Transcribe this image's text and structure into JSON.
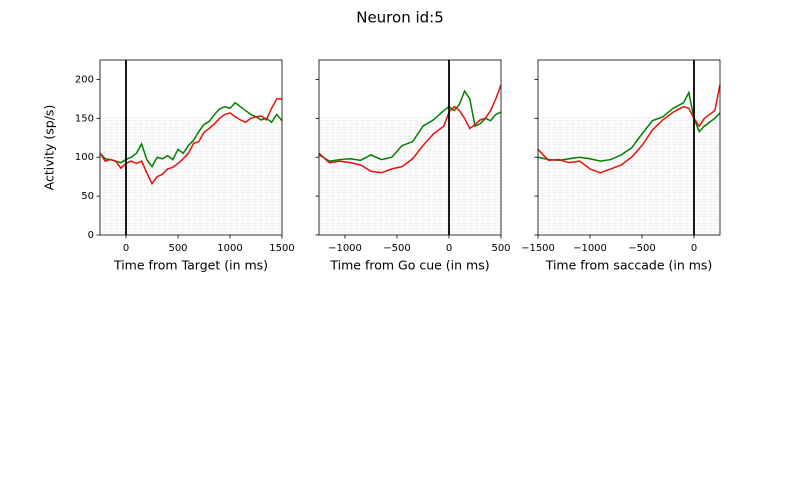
{
  "title": "Neuron id:5",
  "chart_data": [
    {
      "type": "line",
      "xlabel": "Time from Target (in ms)",
      "ylabel": "Activity (sp/s)",
      "xlim": [
        -250,
        1500
      ],
      "xticks": [
        0,
        500,
        1000,
        1500
      ],
      "ylim": [
        0,
        225
      ],
      "yticks": [
        0,
        50,
        100,
        150,
        200
      ],
      "ytick_labels": true,
      "vline": 0,
      "x": [
        -250,
        -200,
        -150,
        -100,
        -50,
        0,
        50,
        100,
        150,
        200,
        250,
        300,
        350,
        400,
        450,
        500,
        550,
        600,
        650,
        700,
        750,
        800,
        850,
        900,
        950,
        1000,
        1050,
        1100,
        1150,
        1200,
        1250,
        1300,
        1350,
        1400,
        1450,
        1500
      ],
      "series": [
        {
          "color": "#008000",
          "values": [
            105,
            98,
            97,
            95,
            93,
            97,
            100,
            105,
            117,
            97,
            88,
            100,
            98,
            102,
            97,
            110,
            105,
            115,
            122,
            133,
            142,
            146,
            155,
            162,
            165,
            163,
            170,
            165,
            160,
            155,
            152,
            148,
            150,
            145,
            155,
            147
          ]
        },
        {
          "color": "#e8100b",
          "values": [
            105,
            95,
            97,
            95,
            86,
            92,
            95,
            92,
            95,
            80,
            66,
            75,
            78,
            85,
            87,
            92,
            98,
            105,
            118,
            120,
            132,
            137,
            143,
            150,
            155,
            157,
            152,
            148,
            145,
            150,
            152,
            153,
            148,
            163,
            175,
            175
          ]
        }
      ]
    },
    {
      "type": "line",
      "xlabel": "Time from Go cue (in ms)",
      "xlim": [
        -1250,
        500
      ],
      "xticks": [
        {
          "value": -1000,
          "label": "−1000"
        },
        {
          "value": -500,
          "label": "−500"
        },
        0,
        500
      ],
      "ylim": [
        0,
        225
      ],
      "yticks": [
        0,
        50,
        100,
        150,
        200
      ],
      "ytick_labels": false,
      "vline": 0,
      "x": [
        -1250,
        -1150,
        -1050,
        -950,
        -850,
        -750,
        -650,
        -550,
        -450,
        -350,
        -250,
        -150,
        -50,
        0,
        50,
        100,
        150,
        200,
        250,
        300,
        350,
        400,
        450,
        500
      ],
      "series": [
        {
          "color": "#008000",
          "values": [
            103,
            95,
            97,
            98,
            96,
            103,
            97,
            100,
            115,
            120,
            140,
            148,
            160,
            165,
            160,
            168,
            185,
            175,
            140,
            143,
            150,
            147,
            155,
            158
          ]
        },
        {
          "color": "#e8100b",
          "values": [
            105,
            93,
            95,
            93,
            90,
            82,
            80,
            85,
            88,
            98,
            115,
            130,
            140,
            158,
            165,
            160,
            150,
            137,
            142,
            148,
            150,
            160,
            175,
            193
          ]
        }
      ]
    },
    {
      "type": "line",
      "xlabel": "Time from saccade (in ms)",
      "xlim": [
        -1500,
        250
      ],
      "xticks": [
        {
          "value": -1500,
          "label": "−1500"
        },
        {
          "value": -1000,
          "label": "−1000"
        },
        {
          "value": -500,
          "label": "−500"
        },
        0
      ],
      "ylim": [
        0,
        225
      ],
      "yticks": [
        0,
        50,
        100,
        150,
        200
      ],
      "ytick_labels": false,
      "vline": 0,
      "x": [
        -1500,
        -1400,
        -1300,
        -1200,
        -1100,
        -1000,
        -900,
        -800,
        -700,
        -600,
        -500,
        -400,
        -300,
        -200,
        -100,
        -50,
        0,
        50,
        100,
        150,
        200,
        250
      ],
      "series": [
        {
          "color": "#008000",
          "values": [
            100,
            97,
            96,
            98,
            100,
            98,
            95,
            97,
            103,
            112,
            130,
            147,
            152,
            163,
            170,
            183,
            150,
            133,
            140,
            145,
            150,
            157
          ]
        },
        {
          "color": "#e8100b",
          "values": [
            110,
            96,
            97,
            93,
            95,
            85,
            80,
            85,
            90,
            100,
            115,
            135,
            148,
            158,
            165,
            163,
            150,
            140,
            150,
            155,
            160,
            193
          ]
        }
      ]
    }
  ]
}
